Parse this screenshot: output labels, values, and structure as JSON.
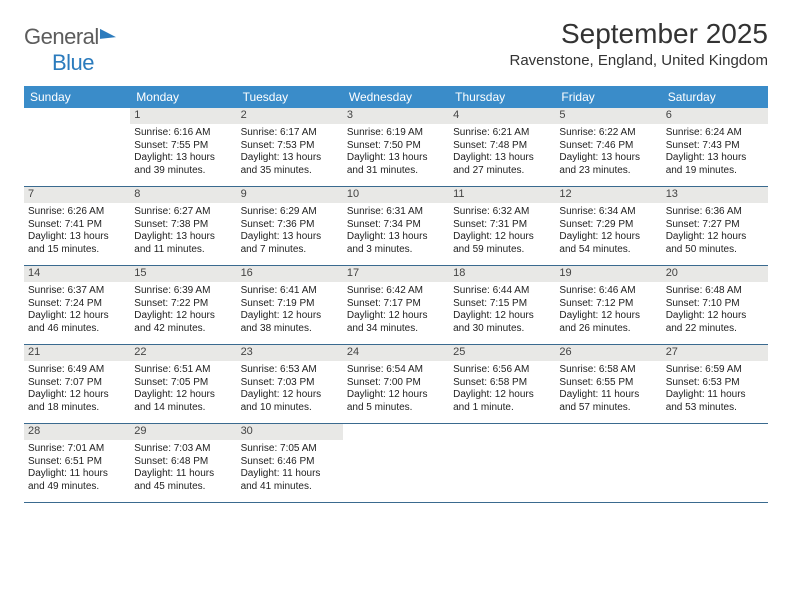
{
  "logo": {
    "word1": "General",
    "word2": "Blue"
  },
  "title": "September 2025",
  "location": "Ravenstone, England, United Kingdom",
  "colors": {
    "header_bg": "#3a8cc9",
    "header_text": "#ffffff",
    "daynum_bg": "#e8e8e6",
    "rule": "#3a6a8f",
    "logo_gray": "#5c5c5c",
    "logo_blue": "#2b7bbd"
  },
  "day_headers": [
    "Sunday",
    "Monday",
    "Tuesday",
    "Wednesday",
    "Thursday",
    "Friday",
    "Saturday"
  ],
  "weeks": [
    [
      {
        "n": "",
        "sun": "",
        "set": "",
        "dl1": "",
        "dl2": ""
      },
      {
        "n": "1",
        "sun": "Sunrise: 6:16 AM",
        "set": "Sunset: 7:55 PM",
        "dl1": "Daylight: 13 hours",
        "dl2": "and 39 minutes."
      },
      {
        "n": "2",
        "sun": "Sunrise: 6:17 AM",
        "set": "Sunset: 7:53 PM",
        "dl1": "Daylight: 13 hours",
        "dl2": "and 35 minutes."
      },
      {
        "n": "3",
        "sun": "Sunrise: 6:19 AM",
        "set": "Sunset: 7:50 PM",
        "dl1": "Daylight: 13 hours",
        "dl2": "and 31 minutes."
      },
      {
        "n": "4",
        "sun": "Sunrise: 6:21 AM",
        "set": "Sunset: 7:48 PM",
        "dl1": "Daylight: 13 hours",
        "dl2": "and 27 minutes."
      },
      {
        "n": "5",
        "sun": "Sunrise: 6:22 AM",
        "set": "Sunset: 7:46 PM",
        "dl1": "Daylight: 13 hours",
        "dl2": "and 23 minutes."
      },
      {
        "n": "6",
        "sun": "Sunrise: 6:24 AM",
        "set": "Sunset: 7:43 PM",
        "dl1": "Daylight: 13 hours",
        "dl2": "and 19 minutes."
      }
    ],
    [
      {
        "n": "7",
        "sun": "Sunrise: 6:26 AM",
        "set": "Sunset: 7:41 PM",
        "dl1": "Daylight: 13 hours",
        "dl2": "and 15 minutes."
      },
      {
        "n": "8",
        "sun": "Sunrise: 6:27 AM",
        "set": "Sunset: 7:38 PM",
        "dl1": "Daylight: 13 hours",
        "dl2": "and 11 minutes."
      },
      {
        "n": "9",
        "sun": "Sunrise: 6:29 AM",
        "set": "Sunset: 7:36 PM",
        "dl1": "Daylight: 13 hours",
        "dl2": "and 7 minutes."
      },
      {
        "n": "10",
        "sun": "Sunrise: 6:31 AM",
        "set": "Sunset: 7:34 PM",
        "dl1": "Daylight: 13 hours",
        "dl2": "and 3 minutes."
      },
      {
        "n": "11",
        "sun": "Sunrise: 6:32 AM",
        "set": "Sunset: 7:31 PM",
        "dl1": "Daylight: 12 hours",
        "dl2": "and 59 minutes."
      },
      {
        "n": "12",
        "sun": "Sunrise: 6:34 AM",
        "set": "Sunset: 7:29 PM",
        "dl1": "Daylight: 12 hours",
        "dl2": "and 54 minutes."
      },
      {
        "n": "13",
        "sun": "Sunrise: 6:36 AM",
        "set": "Sunset: 7:27 PM",
        "dl1": "Daylight: 12 hours",
        "dl2": "and 50 minutes."
      }
    ],
    [
      {
        "n": "14",
        "sun": "Sunrise: 6:37 AM",
        "set": "Sunset: 7:24 PM",
        "dl1": "Daylight: 12 hours",
        "dl2": "and 46 minutes."
      },
      {
        "n": "15",
        "sun": "Sunrise: 6:39 AM",
        "set": "Sunset: 7:22 PM",
        "dl1": "Daylight: 12 hours",
        "dl2": "and 42 minutes."
      },
      {
        "n": "16",
        "sun": "Sunrise: 6:41 AM",
        "set": "Sunset: 7:19 PM",
        "dl1": "Daylight: 12 hours",
        "dl2": "and 38 minutes."
      },
      {
        "n": "17",
        "sun": "Sunrise: 6:42 AM",
        "set": "Sunset: 7:17 PM",
        "dl1": "Daylight: 12 hours",
        "dl2": "and 34 minutes."
      },
      {
        "n": "18",
        "sun": "Sunrise: 6:44 AM",
        "set": "Sunset: 7:15 PM",
        "dl1": "Daylight: 12 hours",
        "dl2": "and 30 minutes."
      },
      {
        "n": "19",
        "sun": "Sunrise: 6:46 AM",
        "set": "Sunset: 7:12 PM",
        "dl1": "Daylight: 12 hours",
        "dl2": "and 26 minutes."
      },
      {
        "n": "20",
        "sun": "Sunrise: 6:48 AM",
        "set": "Sunset: 7:10 PM",
        "dl1": "Daylight: 12 hours",
        "dl2": "and 22 minutes."
      }
    ],
    [
      {
        "n": "21",
        "sun": "Sunrise: 6:49 AM",
        "set": "Sunset: 7:07 PM",
        "dl1": "Daylight: 12 hours",
        "dl2": "and 18 minutes."
      },
      {
        "n": "22",
        "sun": "Sunrise: 6:51 AM",
        "set": "Sunset: 7:05 PM",
        "dl1": "Daylight: 12 hours",
        "dl2": "and 14 minutes."
      },
      {
        "n": "23",
        "sun": "Sunrise: 6:53 AM",
        "set": "Sunset: 7:03 PM",
        "dl1": "Daylight: 12 hours",
        "dl2": "and 10 minutes."
      },
      {
        "n": "24",
        "sun": "Sunrise: 6:54 AM",
        "set": "Sunset: 7:00 PM",
        "dl1": "Daylight: 12 hours",
        "dl2": "and 5 minutes."
      },
      {
        "n": "25",
        "sun": "Sunrise: 6:56 AM",
        "set": "Sunset: 6:58 PM",
        "dl1": "Daylight: 12 hours",
        "dl2": "and 1 minute."
      },
      {
        "n": "26",
        "sun": "Sunrise: 6:58 AM",
        "set": "Sunset: 6:55 PM",
        "dl1": "Daylight: 11 hours",
        "dl2": "and 57 minutes."
      },
      {
        "n": "27",
        "sun": "Sunrise: 6:59 AM",
        "set": "Sunset: 6:53 PM",
        "dl1": "Daylight: 11 hours",
        "dl2": "and 53 minutes."
      }
    ],
    [
      {
        "n": "28",
        "sun": "Sunrise: 7:01 AM",
        "set": "Sunset: 6:51 PM",
        "dl1": "Daylight: 11 hours",
        "dl2": "and 49 minutes."
      },
      {
        "n": "29",
        "sun": "Sunrise: 7:03 AM",
        "set": "Sunset: 6:48 PM",
        "dl1": "Daylight: 11 hours",
        "dl2": "and 45 minutes."
      },
      {
        "n": "30",
        "sun": "Sunrise: 7:05 AM",
        "set": "Sunset: 6:46 PM",
        "dl1": "Daylight: 11 hours",
        "dl2": "and 41 minutes."
      },
      {
        "n": "",
        "sun": "",
        "set": "",
        "dl1": "",
        "dl2": ""
      },
      {
        "n": "",
        "sun": "",
        "set": "",
        "dl1": "",
        "dl2": ""
      },
      {
        "n": "",
        "sun": "",
        "set": "",
        "dl1": "",
        "dl2": ""
      },
      {
        "n": "",
        "sun": "",
        "set": "",
        "dl1": "",
        "dl2": ""
      }
    ]
  ]
}
